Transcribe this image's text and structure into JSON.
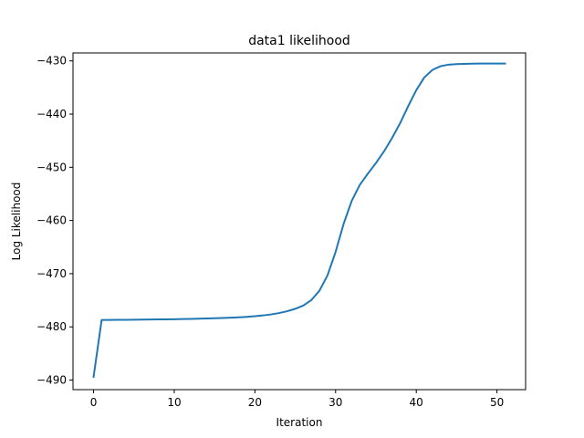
{
  "chart_data": {
    "type": "line",
    "title": "data1 likelihood",
    "xlabel": "Iteration",
    "ylabel": "Log Likelihood",
    "xlim": [
      -2.55,
      53.55
    ],
    "ylim": [
      -491.8,
      -428.5
    ],
    "xticks": [
      0,
      10,
      20,
      30,
      40,
      50
    ],
    "yticks": [
      -490,
      -480,
      -470,
      -460,
      -450,
      -440,
      -430
    ],
    "grid": false,
    "series": [
      {
        "color": "#1f77b4",
        "x": [
          0,
          1,
          2,
          3,
          4,
          5,
          6,
          7,
          8,
          9,
          10,
          11,
          12,
          13,
          14,
          15,
          16,
          17,
          18,
          19,
          20,
          21,
          22,
          23,
          24,
          25,
          26,
          27,
          28,
          29,
          30,
          31,
          32,
          33,
          34,
          35,
          36,
          37,
          38,
          39,
          40,
          41,
          42,
          43,
          44,
          45,
          46,
          47,
          48,
          49,
          50,
          51
        ],
        "y": [
          -489.4,
          -478.7,
          -478.7,
          -478.68,
          -478.67,
          -478.65,
          -478.64,
          -478.62,
          -478.6,
          -478.58,
          -478.56,
          -478.53,
          -478.5,
          -478.47,
          -478.43,
          -478.38,
          -478.33,
          -478.27,
          -478.2,
          -478.11,
          -478.0,
          -477.85,
          -477.66,
          -477.4,
          -477.06,
          -476.6,
          -475.98,
          -474.95,
          -473.2,
          -470.3,
          -465.9,
          -460.6,
          -456.3,
          -453.3,
          -451.2,
          -449.2,
          -447.0,
          -444.5,
          -441.7,
          -438.5,
          -435.5,
          -433.1,
          -431.7,
          -431.0,
          -430.7,
          -430.6,
          -430.55,
          -430.52,
          -430.5,
          -430.5,
          -430.5,
          -430.5
        ]
      }
    ]
  }
}
